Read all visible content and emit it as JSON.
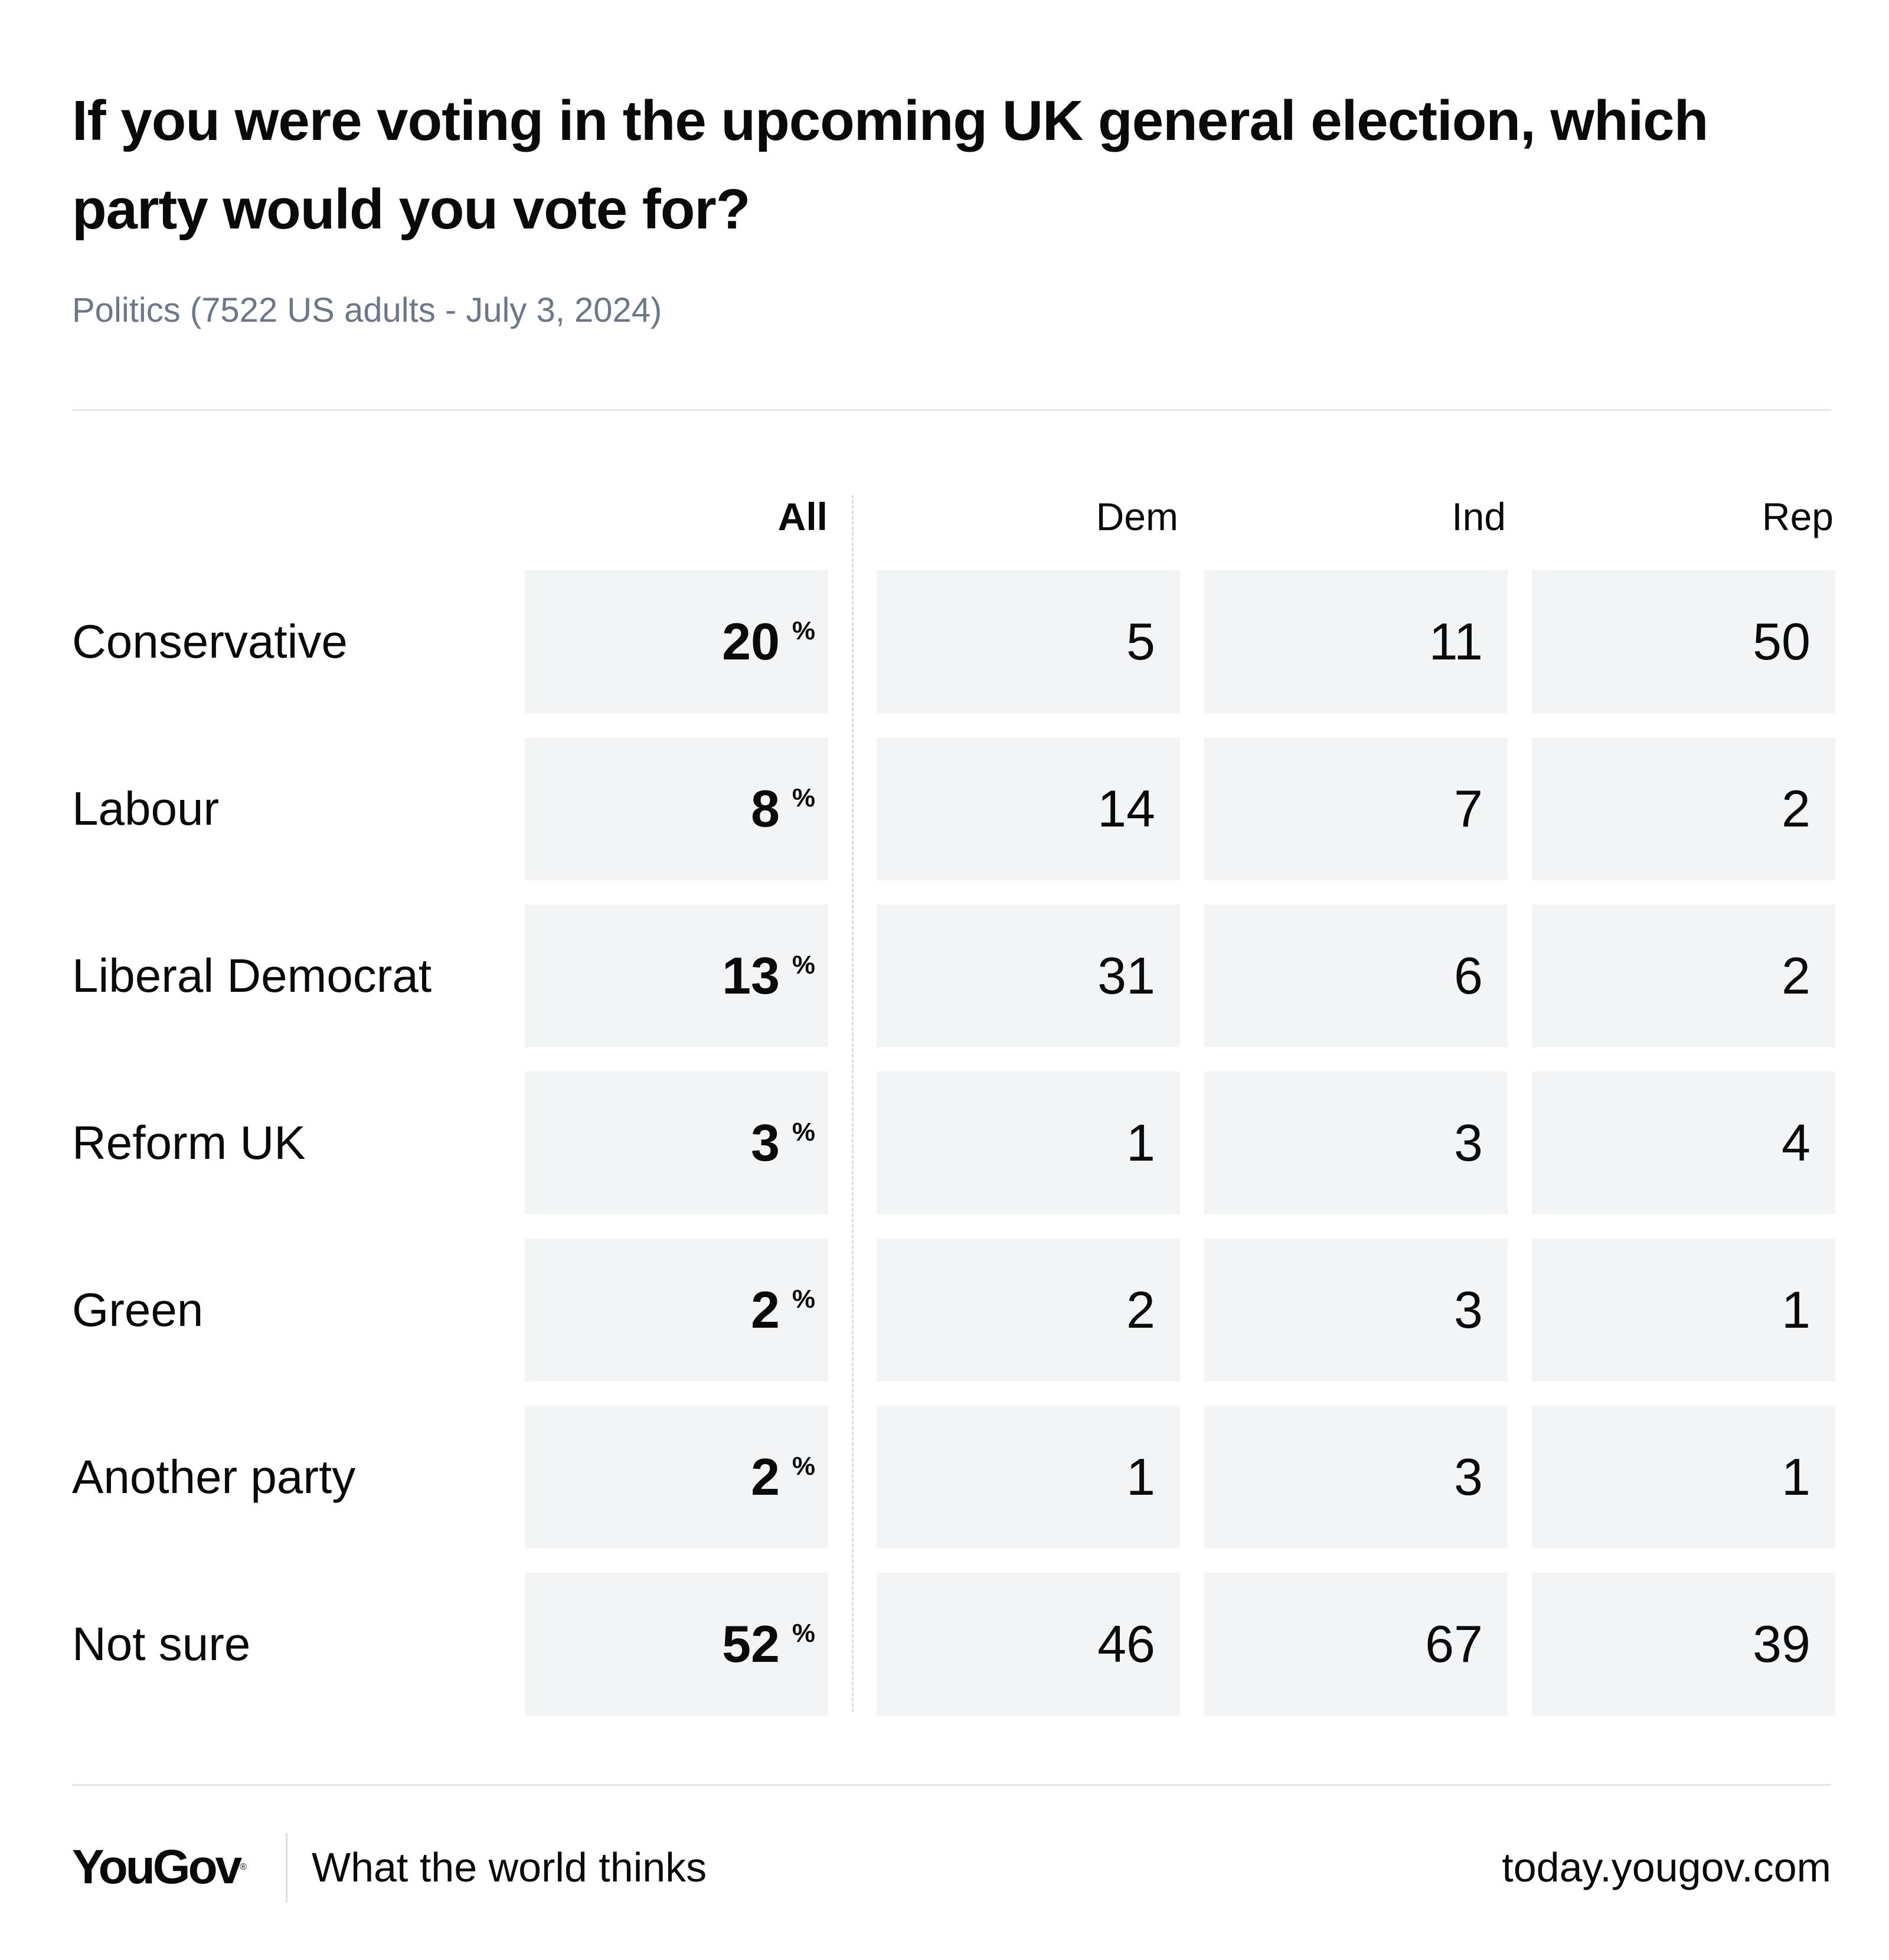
{
  "title": "If you were voting in the upcoming UK general election, which party would you vote for?",
  "subtitle": "Politics (7522 US adults - July 3, 2024)",
  "chart_data": {
    "type": "table",
    "columns": [
      "All",
      "Dem",
      "Ind",
      "Rep"
    ],
    "rows": [
      {
        "label": "Conservative",
        "all": "20",
        "dem": "5",
        "ind": "11",
        "rep": "50"
      },
      {
        "label": "Labour",
        "all": "8",
        "dem": "14",
        "ind": "7",
        "rep": "2"
      },
      {
        "label": "Liberal Democrat",
        "all": "13",
        "dem": "31",
        "ind": "6",
        "rep": "2"
      },
      {
        "label": "Reform UK",
        "all": "3",
        "dem": "1",
        "ind": "3",
        "rep": "4"
      },
      {
        "label": "Green",
        "all": "2",
        "dem": "2",
        "ind": "3",
        "rep": "1"
      },
      {
        "label": "Another party",
        "all": "2",
        "dem": "1",
        "ind": "3",
        "rep": "1"
      },
      {
        "label": "Not sure",
        "all": "52",
        "dem": "46",
        "ind": "67",
        "rep": "39"
      }
    ],
    "unit": "%"
  },
  "footer": {
    "logo": "YouGov",
    "logo_mark": "®",
    "tagline": "What the world thinks",
    "site": "today.yougov.com"
  },
  "colors": {
    "cell_background": "#f3f4f6",
    "subtitle_text": "#6e7689",
    "text": "#0a0a0a"
  }
}
